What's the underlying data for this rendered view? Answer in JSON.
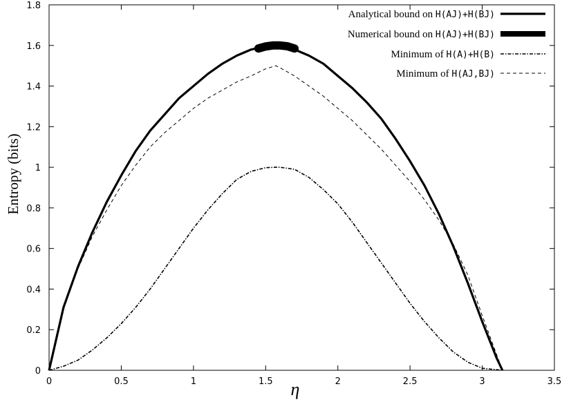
{
  "chart_data": {
    "type": "line",
    "xlabel": "η",
    "ylabel": "Entropy (bits)",
    "xlim": [
      0,
      3.5
    ],
    "ylim": [
      0,
      1.8
    ],
    "x_ticks": [
      "0",
      "0.5",
      "1",
      "1.5",
      "2",
      "2.5",
      "3",
      "3.5"
    ],
    "y_ticks": [
      "0",
      "0.2",
      "0.4",
      "0.6",
      "0.8",
      "1",
      "1.2",
      "1.4",
      "1.6",
      "1.8"
    ],
    "grid": false,
    "legend_position": "top-right",
    "series": [
      {
        "name": "Analytical bound on H(A_J)+H(B_J)",
        "legend_prefix": "Analytical bound on",
        "legend_math": "H(A_J)+H(B_J)",
        "style": "solid-thick",
        "color": "#000000",
        "x": [
          0,
          0.1,
          0.2,
          0.3,
          0.4,
          0.5,
          0.6,
          0.7,
          0.8,
          0.9,
          1.0,
          1.1,
          1.2,
          1.3,
          1.4,
          1.5,
          1.571,
          1.6,
          1.7,
          1.8,
          1.9,
          2.0,
          2.1,
          2.2,
          2.3,
          2.4,
          2.5,
          2.6,
          2.7,
          2.8,
          2.9,
          3.0,
          3.1,
          3.14
        ],
        "y": [
          0,
          0.31,
          0.51,
          0.68,
          0.83,
          0.96,
          1.08,
          1.18,
          1.26,
          1.34,
          1.4,
          1.46,
          1.51,
          1.55,
          1.58,
          1.596,
          1.6,
          1.6,
          1.58,
          1.55,
          1.51,
          1.45,
          1.39,
          1.32,
          1.24,
          1.14,
          1.03,
          0.91,
          0.77,
          0.61,
          0.43,
          0.24,
          0.06,
          0
        ]
      },
      {
        "name": "Numerical bound on H(A_J)+H(B_J)",
        "legend_prefix": "Numerical bound on",
        "legend_math": "H(A_J)+H(B_J)",
        "style": "thick-band",
        "color": "#000000",
        "x": [
          1.45,
          1.5,
          1.55,
          1.6,
          1.65,
          1.7
        ],
        "y": [
          1.585,
          1.595,
          1.6,
          1.6,
          1.596,
          1.585
        ]
      },
      {
        "name": "Minimum of H(A)+H(B)",
        "legend_prefix": "Minimum of",
        "legend_math": "H(A)+H(B)",
        "style": "dash-dot",
        "color": "#000000",
        "x": [
          0,
          0.1,
          0.2,
          0.3,
          0.4,
          0.5,
          0.6,
          0.7,
          0.8,
          0.9,
          1.0,
          1.1,
          1.2,
          1.3,
          1.4,
          1.5,
          1.571,
          1.6,
          1.7,
          1.8,
          1.9,
          2.0,
          2.1,
          2.2,
          2.3,
          2.4,
          2.5,
          2.6,
          2.7,
          2.8,
          2.9,
          3.0,
          3.14
        ],
        "y": [
          0,
          0.02,
          0.05,
          0.1,
          0.16,
          0.23,
          0.31,
          0.4,
          0.5,
          0.6,
          0.7,
          0.79,
          0.87,
          0.94,
          0.98,
          0.998,
          1.0,
          1.0,
          0.99,
          0.95,
          0.89,
          0.82,
          0.73,
          0.63,
          0.53,
          0.43,
          0.33,
          0.24,
          0.16,
          0.09,
          0.04,
          0.01,
          0
        ]
      },
      {
        "name": "Minimum of H(A_J,B_J)",
        "legend_prefix": "Minimum of",
        "legend_math": "H(A_J,B_J)",
        "style": "dashed",
        "color": "#000000",
        "x": [
          0,
          0.1,
          0.2,
          0.3,
          0.4,
          0.5,
          0.6,
          0.7,
          0.8,
          0.9,
          1.0,
          1.1,
          1.2,
          1.3,
          1.4,
          1.5,
          1.571,
          1.6,
          1.7,
          1.8,
          1.9,
          2.0,
          2.1,
          2.2,
          2.3,
          2.4,
          2.5,
          2.6,
          2.7,
          2.8,
          2.9,
          3.0,
          3.14
        ],
        "y": [
          0,
          0.3,
          0.5,
          0.66,
          0.79,
          0.91,
          1.01,
          1.1,
          1.17,
          1.23,
          1.29,
          1.34,
          1.38,
          1.42,
          1.45,
          1.485,
          1.5,
          1.49,
          1.45,
          1.4,
          1.35,
          1.29,
          1.23,
          1.16,
          1.09,
          1.01,
          0.93,
          0.84,
          0.74,
          0.62,
          0.47,
          0.27,
          0
        ]
      }
    ]
  }
}
